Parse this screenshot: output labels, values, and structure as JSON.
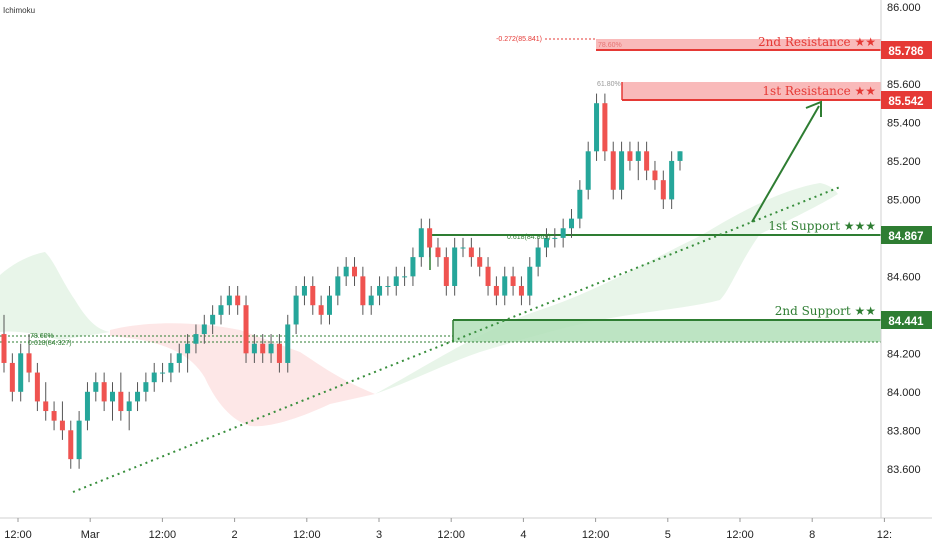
{
  "indicator": "Ichimoku",
  "colors": {
    "up": "#26a69a",
    "down": "#ef5350",
    "green": "#2e7d32",
    "red": "#e53935",
    "resZone": "#f8a9a9",
    "supZone": "#b2dfb8",
    "cloudGreen": "#e8f5e9",
    "cloudRed": "#fde7e7",
    "trend": "#388e3c"
  },
  "chart_data": {
    "type": "candlestick",
    "y_axis": {
      "min": 83.5,
      "max": 86.0,
      "ticks": [
        "86.000",
        "85.800",
        "85.600",
        "85.400",
        "85.200",
        "85.000",
        "84.800",
        "84.600",
        "84.400",
        "84.200",
        "84.000",
        "83.800",
        "83.600"
      ]
    },
    "x_axis": {
      "ticks": [
        "12:00",
        "Mar",
        "12:00",
        "2",
        "12:00",
        "3",
        "12:00",
        "4",
        "12:00",
        "5",
        "12:00",
        "8",
        "12:"
      ]
    },
    "levels": [
      {
        "name": "2nd Resistance ★★",
        "value": "85.786",
        "kind": "resistance"
      },
      {
        "name": "1st Resistance ★★",
        "value": "85.542",
        "kind": "resistance"
      },
      {
        "name": "1st Support ★★★",
        "value": "84.867",
        "kind": "support"
      },
      {
        "name": "2nd Support ★★",
        "value": "84.441",
        "kind": "support"
      }
    ],
    "fib_labels": [
      {
        "text": "-0.272(85.841)",
        "price": 85.841
      },
      {
        "text": "78.60%",
        "price": 85.8
      },
      {
        "text": "61.80%",
        "price": 85.62
      },
      {
        "text": "0.618(84.869)",
        "price": 84.869
      },
      {
        "text": "78.60%",
        "price": 84.355
      },
      {
        "text": "0.618(84.327)",
        "price": 84.327
      }
    ],
    "candles": [
      [
        84.3,
        84.4,
        84.1,
        84.15
      ],
      [
        84.15,
        84.2,
        83.95,
        84.0
      ],
      [
        84.0,
        84.25,
        83.95,
        84.2
      ],
      [
        84.2,
        84.3,
        84.05,
        84.1
      ],
      [
        84.1,
        84.15,
        83.9,
        83.95
      ],
      [
        83.95,
        84.05,
        83.85,
        83.9
      ],
      [
        83.9,
        83.95,
        83.8,
        83.85
      ],
      [
        83.85,
        83.95,
        83.75,
        83.8
      ],
      [
        83.8,
        83.85,
        83.6,
        83.65
      ],
      [
        83.65,
        83.9,
        83.6,
        83.85
      ],
      [
        83.85,
        84.05,
        83.8,
        84.0
      ],
      [
        84.0,
        84.1,
        83.95,
        84.05
      ],
      [
        84.05,
        84.1,
        83.9,
        83.95
      ],
      [
        83.95,
        84.05,
        83.85,
        84.0
      ],
      [
        84.0,
        84.1,
        83.85,
        83.9
      ],
      [
        83.9,
        84.0,
        83.8,
        83.95
      ],
      [
        83.95,
        84.05,
        83.9,
        84.0
      ],
      [
        84.0,
        84.1,
        83.95,
        84.05
      ],
      [
        84.05,
        84.15,
        84.0,
        84.1
      ],
      [
        84.1,
        84.15,
        84.05,
        84.1
      ],
      [
        84.1,
        84.2,
        84.05,
        84.15
      ],
      [
        84.15,
        84.25,
        84.1,
        84.2
      ],
      [
        84.2,
        84.3,
        84.1,
        84.25
      ],
      [
        84.25,
        84.35,
        84.2,
        84.3
      ],
      [
        84.3,
        84.4,
        84.25,
        84.35
      ],
      [
        84.35,
        84.45,
        84.3,
        84.4
      ],
      [
        84.4,
        84.5,
        84.35,
        84.45
      ],
      [
        84.45,
        84.55,
        84.4,
        84.5
      ],
      [
        84.5,
        84.55,
        84.4,
        84.45
      ],
      [
        84.45,
        84.5,
        84.15,
        84.2
      ],
      [
        84.2,
        84.3,
        84.15,
        84.25
      ],
      [
        84.25,
        84.3,
        84.15,
        84.2
      ],
      [
        84.2,
        84.3,
        84.15,
        84.25
      ],
      [
        84.25,
        84.3,
        84.1,
        84.15
      ],
      [
        84.15,
        84.4,
        84.1,
        84.35
      ],
      [
        84.35,
        84.55,
        84.3,
        84.5
      ],
      [
        84.5,
        84.6,
        84.45,
        84.55
      ],
      [
        84.55,
        84.6,
        84.4,
        84.45
      ],
      [
        84.45,
        84.5,
        84.35,
        84.4
      ],
      [
        84.4,
        84.55,
        84.35,
        84.5
      ],
      [
        84.5,
        84.65,
        84.45,
        84.6
      ],
      [
        84.6,
        84.7,
        84.55,
        84.65
      ],
      [
        84.65,
        84.7,
        84.55,
        84.6
      ],
      [
        84.6,
        84.65,
        84.4,
        84.45
      ],
      [
        84.45,
        84.55,
        84.4,
        84.5
      ],
      [
        84.5,
        84.6,
        84.45,
        84.55
      ],
      [
        84.55,
        84.6,
        84.5,
        84.55
      ],
      [
        84.55,
        84.65,
        84.5,
        84.6
      ],
      [
        84.6,
        84.65,
        84.55,
        84.6
      ],
      [
        84.6,
        84.75,
        84.55,
        84.7
      ],
      [
        84.7,
        84.9,
        84.65,
        84.85
      ],
      [
        84.85,
        84.9,
        84.7,
        84.75
      ],
      [
        84.75,
        84.8,
        84.65,
        84.7
      ],
      [
        84.7,
        84.75,
        84.5,
        84.55
      ],
      [
        84.55,
        84.8,
        84.5,
        84.75
      ],
      [
        84.75,
        84.8,
        84.7,
        84.75
      ],
      [
        84.75,
        84.8,
        84.65,
        84.7
      ],
      [
        84.7,
        84.75,
        84.6,
        84.65
      ],
      [
        84.65,
        84.7,
        84.5,
        84.55
      ],
      [
        84.55,
        84.6,
        84.45,
        84.5
      ],
      [
        84.5,
        84.65,
        84.45,
        84.6
      ],
      [
        84.6,
        84.65,
        84.5,
        84.55
      ],
      [
        84.55,
        84.6,
        84.45,
        84.5
      ],
      [
        84.5,
        84.7,
        84.45,
        84.65
      ],
      [
        84.65,
        84.8,
        84.6,
        84.75
      ],
      [
        84.75,
        84.85,
        84.7,
        84.8
      ],
      [
        84.8,
        84.85,
        84.75,
        84.8
      ],
      [
        84.8,
        84.9,
        84.75,
        84.85
      ],
      [
        84.85,
        84.95,
        84.8,
        84.9
      ],
      [
        84.9,
        85.1,
        84.85,
        85.05
      ],
      [
        85.05,
        85.3,
        85.0,
        85.25
      ],
      [
        85.25,
        85.55,
        85.2,
        85.5
      ],
      [
        85.5,
        85.55,
        85.2,
        85.25
      ],
      [
        85.25,
        85.3,
        85.0,
        85.05
      ],
      [
        85.05,
        85.3,
        85.0,
        85.25
      ],
      [
        85.25,
        85.3,
        85.15,
        85.2
      ],
      [
        85.2,
        85.3,
        85.1,
        85.25
      ],
      [
        85.25,
        85.3,
        85.1,
        85.15
      ],
      [
        85.15,
        85.2,
        85.05,
        85.1
      ],
      [
        85.1,
        85.15,
        84.95,
        85.0
      ],
      [
        85.0,
        85.25,
        84.95,
        85.2
      ],
      [
        85.2,
        85.25,
        85.15,
        85.25
      ]
    ]
  }
}
